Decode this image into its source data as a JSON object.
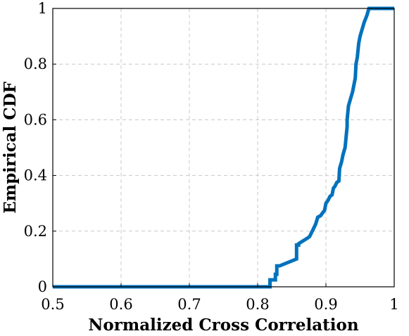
{
  "chart_data": {
    "type": "line",
    "title": "",
    "xlabel": "Normalized Cross Correlation",
    "ylabel": "Empirical CDF",
    "xlim": [
      0.5,
      1
    ],
    "ylim": [
      0,
      1
    ],
    "xticks": [
      0.5,
      0.6,
      0.7,
      0.8,
      0.9,
      1
    ],
    "yticks": [
      0,
      0.2,
      0.4,
      0.6,
      0.8,
      1
    ],
    "xtick_labels": [
      "0.5",
      "0.6",
      "0.7",
      "0.8",
      "0.9",
      "1"
    ],
    "ytick_labels": [
      "0",
      "0.2",
      "0.4",
      "0.6",
      "0.8",
      "1"
    ],
    "grid": true,
    "series": [
      {
        "color": "#0072BD",
        "x": [
          0.5,
          0.818,
          0.818,
          0.826,
          0.826,
          0.828,
          0.828,
          0.832,
          0.857,
          0.857,
          0.86,
          0.86,
          0.873,
          0.876,
          0.88,
          0.885,
          0.888,
          0.892,
          0.898,
          0.9,
          0.903,
          0.906,
          0.909,
          0.911,
          0.913,
          0.916,
          0.919,
          0.92,
          0.923,
          0.925,
          0.928,
          0.93,
          0.931,
          0.931,
          0.933,
          0.936,
          0.939,
          0.943,
          0.944,
          0.946,
          0.948,
          0.95,
          0.953,
          0.956,
          0.96,
          0.963,
          0.966,
          1.0
        ],
        "y": [
          0,
          0,
          0.025,
          0.025,
          0.045,
          0.045,
          0.075,
          0.075,
          0.1,
          0.15,
          0.15,
          0.155,
          0.175,
          0.18,
          0.2,
          0.225,
          0.25,
          0.255,
          0.275,
          0.3,
          0.31,
          0.325,
          0.33,
          0.355,
          0.36,
          0.375,
          0.38,
          0.425,
          0.45,
          0.475,
          0.5,
          0.55,
          0.575,
          0.6,
          0.65,
          0.675,
          0.7,
          0.75,
          0.8,
          0.825,
          0.875,
          0.9,
          0.925,
          0.95,
          0.975,
          1.0,
          1.0,
          1.0
        ]
      }
    ]
  }
}
